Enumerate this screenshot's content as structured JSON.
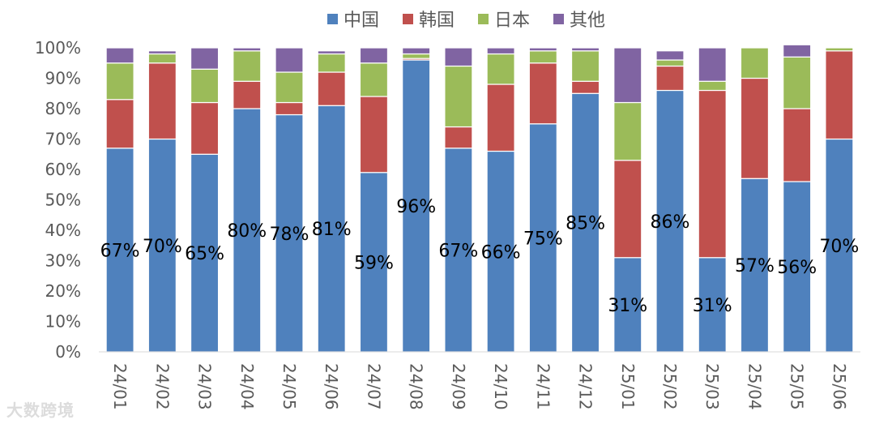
{
  "chart_data": {
    "type": "bar",
    "stacked": true,
    "percent": true,
    "categories": [
      "24/01",
      "24/02",
      "24/03",
      "24/04",
      "24/05",
      "24/06",
      "24/07",
      "24/08",
      "24/09",
      "24/10",
      "24/11",
      "24/12",
      "25/01",
      "25/02",
      "25/03",
      "25/04",
      "25/05",
      "25/06"
    ],
    "series": [
      {
        "name": "中国",
        "color": "#4f81bd",
        "values": [
          67,
          70,
          65,
          80,
          78,
          81,
          59,
          96,
          67,
          66,
          75,
          85,
          31,
          86,
          31,
          57,
          56,
          70
        ]
      },
      {
        "name": "韩国",
        "color": "#c0504d",
        "values": [
          16,
          25,
          17,
          9,
          4,
          11,
          25,
          0.5,
          7,
          22,
          20,
          4,
          32,
          8,
          55,
          33,
          24,
          29
        ]
      },
      {
        "name": "日本",
        "color": "#9bbb59",
        "values": [
          12,
          3,
          11,
          10,
          10,
          6,
          11,
          1.5,
          20,
          10,
          4,
          10,
          19,
          2,
          3,
          10,
          17,
          1
        ]
      },
      {
        "name": "其他",
        "color": "#8064a2",
        "values": [
          5,
          1,
          7,
          1,
          8,
          1,
          5,
          2,
          6,
          2,
          1,
          1,
          18,
          3,
          11,
          0,
          4,
          0
        ]
      }
    ],
    "data_labels": [
      "67%",
      "70%",
      "65%",
      "80%",
      "78%",
      "81%",
      "59%",
      "96%",
      "67%",
      "66%",
      "75%",
      "85%",
      "31%",
      "86%",
      "31%",
      "57%",
      "56%",
      "70%"
    ],
    "y_ticks": [
      "0%",
      "10%",
      "20%",
      "30%",
      "40%",
      "50%",
      "60%",
      "70%",
      "80%",
      "90%",
      "100%"
    ],
    "ylim": [
      0,
      100
    ],
    "legend_position": "top-center",
    "grid": false
  },
  "watermark": "大数跨境"
}
